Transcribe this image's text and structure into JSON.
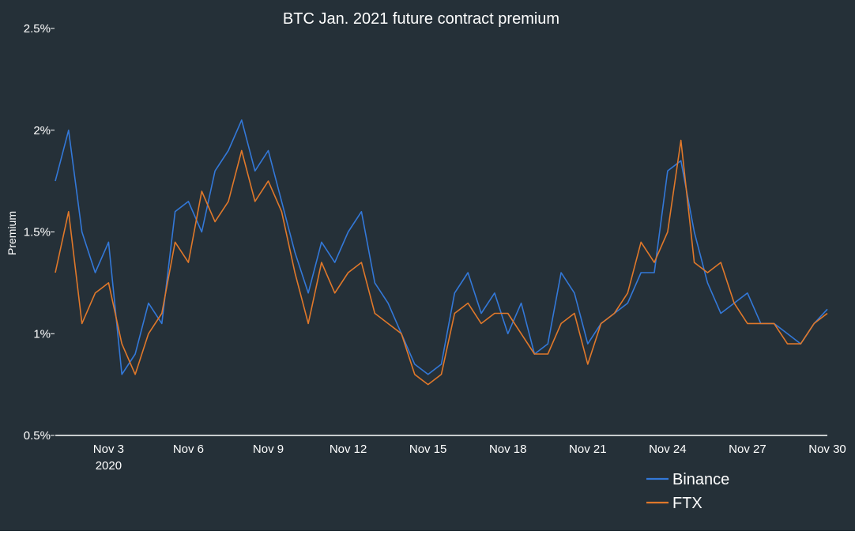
{
  "colors": {
    "background": "#253038",
    "axis": "#ffffff",
    "text": "#ffffff",
    "binance": "#3378d8",
    "ftx": "#e0782a"
  },
  "chart_data": {
    "type": "line",
    "title": "BTC Jan. 2021 future contract premium",
    "xlabel": "",
    "ylabel": "Premium",
    "xlim": [
      "2020-11-01",
      "2020-11-30"
    ],
    "ylim": [
      0.5,
      2.5
    ],
    "y_unit": "%",
    "grid": false,
    "legend_position": "bottom-right",
    "y_ticks": [
      {
        "value": 0.5,
        "label": "0.5%"
      },
      {
        "value": 1.0,
        "label": "1%"
      },
      {
        "value": 1.5,
        "label": "1.5%"
      },
      {
        "value": 2.0,
        "label": "2%"
      },
      {
        "value": 2.5,
        "label": "2.5%"
      }
    ],
    "x_ticks": [
      {
        "value": "2020-11-03",
        "label": "Nov 3",
        "sublabel": "2020"
      },
      {
        "value": "2020-11-06",
        "label": "Nov 6"
      },
      {
        "value": "2020-11-09",
        "label": "Nov 9"
      },
      {
        "value": "2020-11-12",
        "label": "Nov 12"
      },
      {
        "value": "2020-11-15",
        "label": "Nov 15"
      },
      {
        "value": "2020-11-18",
        "label": "Nov 18"
      },
      {
        "value": "2020-11-21",
        "label": "Nov 21"
      },
      {
        "value": "2020-11-24",
        "label": "Nov 24"
      },
      {
        "value": "2020-11-27",
        "label": "Nov 27"
      },
      {
        "value": "2020-11-30",
        "label": "Nov 30"
      }
    ],
    "x": [
      "2020-11-01",
      "2020-11-01 12:00",
      "2020-11-02",
      "2020-11-02 12:00",
      "2020-11-03",
      "2020-11-03 12:00",
      "2020-11-04",
      "2020-11-04 12:00",
      "2020-11-05",
      "2020-11-05 12:00",
      "2020-11-06",
      "2020-11-06 12:00",
      "2020-11-07",
      "2020-11-07 12:00",
      "2020-11-08",
      "2020-11-08 12:00",
      "2020-11-09",
      "2020-11-09 12:00",
      "2020-11-10",
      "2020-11-10 12:00",
      "2020-11-11",
      "2020-11-11 12:00",
      "2020-11-12",
      "2020-11-12 12:00",
      "2020-11-13",
      "2020-11-13 12:00",
      "2020-11-14",
      "2020-11-14 12:00",
      "2020-11-15",
      "2020-11-15 12:00",
      "2020-11-16",
      "2020-11-16 12:00",
      "2020-11-17",
      "2020-11-17 12:00",
      "2020-11-18",
      "2020-11-18 12:00",
      "2020-11-19",
      "2020-11-19 12:00",
      "2020-11-20",
      "2020-11-20 12:00",
      "2020-11-21",
      "2020-11-21 12:00",
      "2020-11-22",
      "2020-11-22 12:00",
      "2020-11-23",
      "2020-11-23 12:00",
      "2020-11-24",
      "2020-11-24 12:00",
      "2020-11-25",
      "2020-11-25 12:00",
      "2020-11-26",
      "2020-11-26 12:00",
      "2020-11-27",
      "2020-11-27 12:00",
      "2020-11-28",
      "2020-11-28 12:00",
      "2020-11-29",
      "2020-11-29 12:00",
      "2020-11-30"
    ],
    "series": [
      {
        "name": "Binance",
        "color": "#3378d8",
        "values": [
          1.75,
          2.0,
          1.5,
          1.3,
          1.45,
          0.8,
          0.9,
          1.15,
          1.05,
          1.6,
          1.65,
          1.5,
          1.8,
          1.9,
          2.05,
          1.8,
          1.9,
          1.65,
          1.4,
          1.2,
          1.45,
          1.35,
          1.5,
          1.6,
          1.25,
          1.15,
          1.0,
          0.85,
          0.8,
          0.85,
          1.2,
          1.3,
          1.1,
          1.2,
          1.0,
          1.15,
          0.9,
          0.95,
          1.3,
          1.2,
          0.95,
          1.05,
          1.1,
          1.15,
          1.3,
          1.3,
          1.8,
          1.85,
          1.5,
          1.25,
          1.1,
          1.15,
          1.2,
          1.05,
          1.05,
          1.0,
          0.95,
          1.05,
          1.12
        ]
      },
      {
        "name": "FTX",
        "color": "#e0782a",
        "values": [
          1.3,
          1.6,
          1.05,
          1.2,
          1.25,
          0.95,
          0.8,
          1.0,
          1.1,
          1.45,
          1.35,
          1.7,
          1.55,
          1.65,
          1.9,
          1.65,
          1.75,
          1.6,
          1.3,
          1.05,
          1.35,
          1.2,
          1.3,
          1.35,
          1.1,
          1.05,
          1.0,
          0.8,
          0.75,
          0.8,
          1.1,
          1.15,
          1.05,
          1.1,
          1.1,
          1.0,
          0.9,
          0.9,
          1.05,
          1.1,
          0.85,
          1.05,
          1.1,
          1.2,
          1.45,
          1.35,
          1.5,
          1.95,
          1.35,
          1.3,
          1.35,
          1.15,
          1.05,
          1.05,
          1.05,
          0.95,
          0.95,
          1.05,
          1.1
        ]
      }
    ]
  }
}
